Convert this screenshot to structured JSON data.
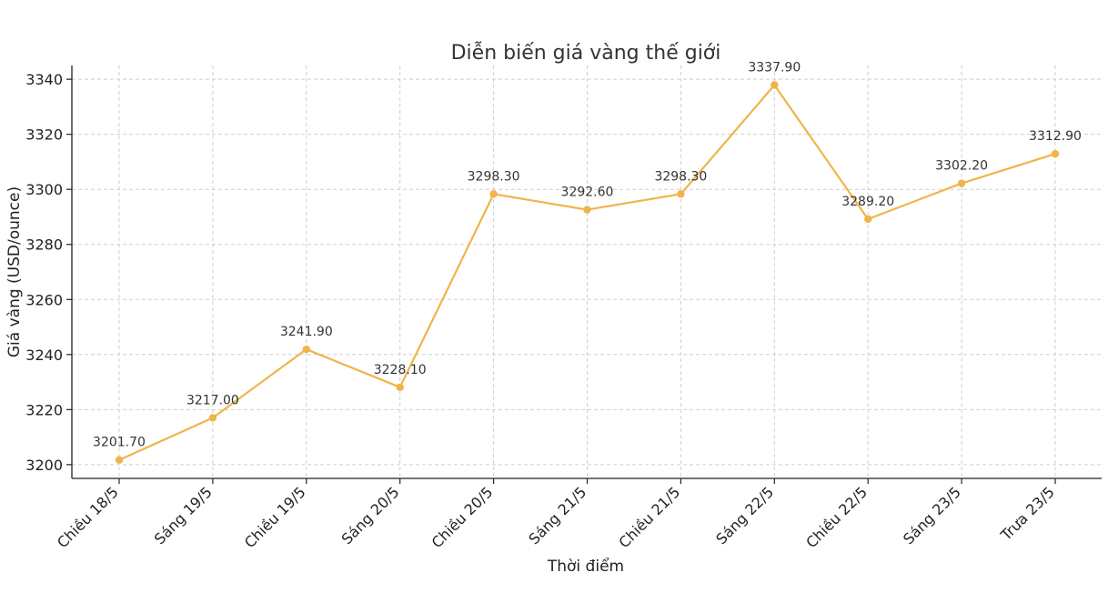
{
  "chart_data": {
    "type": "line",
    "title": "Diễn biến giá vàng thế giới",
    "xlabel": "Thời điểm",
    "ylabel": "Giá vàng (USD/ounce)",
    "categories": [
      "Chiều 18/5",
      "Sáng 19/5",
      "Chiều 19/5",
      "Sáng 20/5",
      "Chiều 20/5",
      "Sáng 21/5",
      "Chiều 21/5",
      "Sáng 22/5",
      "Chiều 22/5",
      "Sáng 23/5",
      "Trưa 23/5"
    ],
    "series": [
      {
        "values": [
          3201.7,
          3217.0,
          3241.9,
          3228.1,
          3298.3,
          3292.6,
          3298.3,
          3337.9,
          3289.2,
          3302.2,
          3312.9
        ],
        "data_labels": [
          "3201.70",
          "3217.00",
          "3241.90",
          "3228.10",
          "3298.30",
          "3292.60",
          "3298.30",
          "3337.90",
          "3289.20",
          "3302.20",
          "3312.90"
        ],
        "color": "#F0B44A"
      }
    ],
    "yticks": [
      3200,
      3220,
      3240,
      3260,
      3280,
      3300,
      3320,
      3340
    ],
    "ylim": [
      3195,
      3345
    ],
    "grid": true,
    "legend": "none"
  }
}
